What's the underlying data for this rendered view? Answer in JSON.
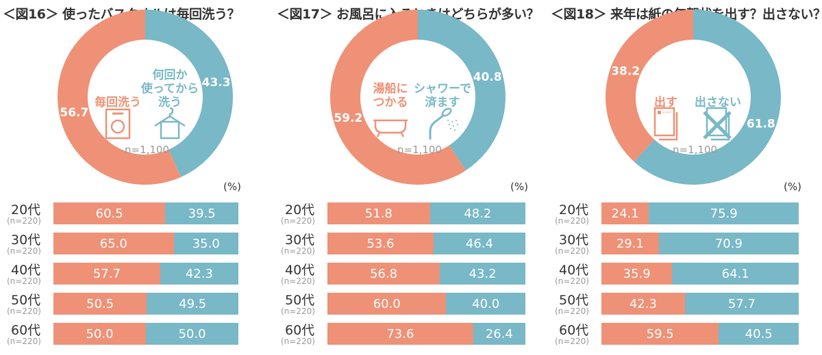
{
  "colors": {
    "first": "#ee9176",
    "second": "#78b8c7",
    "title": "#333333",
    "muted": "#999999"
  },
  "unit": "(%)",
  "chart_data": [
    {
      "type": "pie",
      "title": "＜図16＞ 使ったバスタオルは毎回洗う？",
      "n": "n=1,100",
      "slices": [
        {
          "name": "毎回洗う",
          "value": 56.7,
          "icon": "washing-machine-icon"
        },
        {
          "name": "何回か\n使ってから\n洗う",
          "value": 43.3,
          "icon": "towel-hanger-icon"
        }
      ],
      "bar": {
        "type": "bar",
        "stacked": true,
        "categories": [
          "20代",
          "30代",
          "40代",
          "50代",
          "60代"
        ],
        "n_labels": [
          "(n=220)",
          "(n=220)",
          "(n=220)",
          "(n=220)",
          "(n=220)"
        ],
        "series": [
          {
            "values": [
              60.5,
              65.0,
              57.7,
              50.5,
              50.0
            ]
          },
          {
            "values": [
              39.5,
              35.0,
              42.3,
              49.5,
              50.0
            ]
          }
        ]
      }
    },
    {
      "type": "pie",
      "title": "＜図17＞ お風呂に入るときはどちらが多い？",
      "n": "n=1,100",
      "slices": [
        {
          "name": "湯船に\nつかる",
          "value": 59.2,
          "icon": "bathtub-icon"
        },
        {
          "name": "シャワーで\n済ます",
          "value": 40.8,
          "icon": "shower-icon"
        }
      ],
      "bar": {
        "type": "bar",
        "stacked": true,
        "categories": [
          "20代",
          "30代",
          "40代",
          "50代",
          "60代"
        ],
        "n_labels": [
          "(n=220)",
          "(n=220)",
          "(n=220)",
          "(n=220)",
          "(n=220)"
        ],
        "series": [
          {
            "values": [
              51.8,
              53.6,
              56.8,
              60.0,
              73.6
            ]
          },
          {
            "values": [
              48.2,
              46.4,
              43.2,
              40.0,
              26.4
            ]
          }
        ]
      }
    },
    {
      "type": "pie",
      "title": "＜図18＞ 来年は紙の年賀状を出す？出さない？",
      "n": "n=1,100",
      "slices": [
        {
          "name": "出す",
          "value": 38.2,
          "icon": "postcard-icon"
        },
        {
          "name": "出さない",
          "value": 61.8,
          "icon": "postcard-crossed-icon"
        }
      ],
      "bar": {
        "type": "bar",
        "stacked": true,
        "categories": [
          "20代",
          "30代",
          "40代",
          "50代",
          "60代"
        ],
        "n_labels": [
          "(n=220)",
          "(n=220)",
          "(n=220)",
          "(n=220)",
          "(n=220)"
        ],
        "series": [
          {
            "values": [
              24.1,
              29.1,
              35.9,
              42.3,
              59.5
            ]
          },
          {
            "values": [
              75.9,
              70.9,
              64.1,
              57.7,
              40.5
            ]
          }
        ]
      }
    }
  ]
}
